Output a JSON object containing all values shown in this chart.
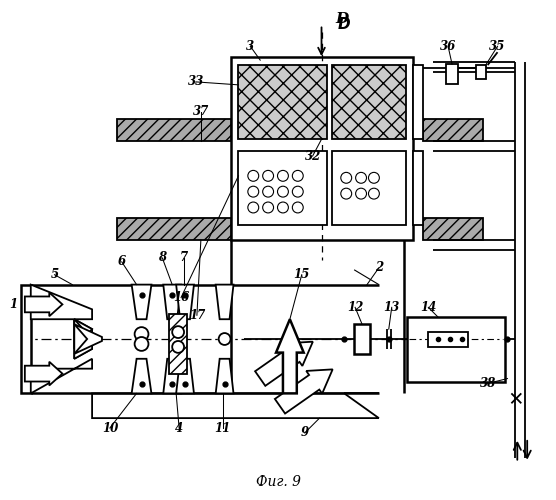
{
  "title": "Фиг. 9",
  "bg_color": "#ffffff",
  "fig_width": 5.56,
  "fig_height": 5.0,
  "lw": 1.3,
  "lw2": 1.8
}
